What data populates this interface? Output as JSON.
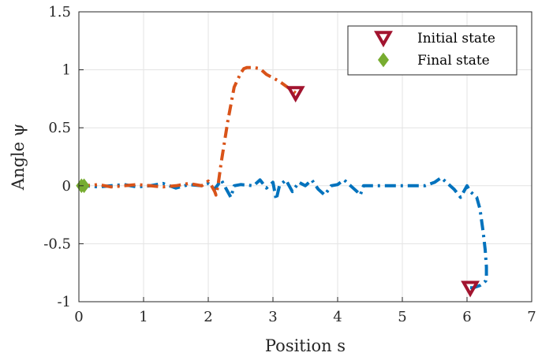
{
  "chart_data": {
    "type": "line",
    "xlabel": "Position s",
    "ylabel": "Angle ψ",
    "xlim": [
      0,
      7
    ],
    "ylim": [
      -1,
      1.5
    ],
    "xticks": [
      "0",
      "1",
      "2",
      "3",
      "4",
      "5",
      "6",
      "7"
    ],
    "yticks": [
      "-1",
      "-0.5",
      "0",
      "0.5",
      "1",
      "1.5"
    ],
    "grid": true,
    "legend_position": "top-right",
    "legend": [
      {
        "label": "Initial state",
        "marker": "triangle-down",
        "color": "#A2142F"
      },
      {
        "label": "Final state",
        "marker": "diamond",
        "color": "#77AC30"
      }
    ],
    "series": [
      {
        "color": "#0072BD",
        "line_style": "dash-dot",
        "x": [
          0.0,
          0.1,
          0.3,
          0.5,
          0.7,
          0.9,
          1.1,
          1.3,
          1.5,
          1.7,
          1.9,
          2.0,
          2.1,
          2.2,
          2.3,
          2.35,
          2.4,
          2.5,
          2.7,
          2.8,
          2.9,
          3.0,
          3.05,
          3.1,
          3.2,
          3.3,
          3.4,
          3.5,
          3.6,
          3.7,
          3.8,
          3.9,
          4.0,
          4.1,
          4.2,
          4.3,
          4.35,
          4.4,
          4.5,
          4.8,
          5.0,
          5.2,
          5.35,
          5.5,
          5.6,
          5.7,
          5.8,
          5.9,
          6.0,
          6.05,
          6.15,
          6.2,
          6.25,
          6.28,
          6.3,
          6.3,
          6.29,
          6.25,
          6.2,
          6.1,
          6.0
        ],
        "y": [
          0.0,
          0.0,
          -0.01,
          0.0,
          0.01,
          -0.01,
          0.0,
          0.02,
          -0.02,
          0.01,
          0.0,
          0.02,
          -0.03,
          0.05,
          -0.05,
          -0.1,
          0.0,
          0.01,
          0.0,
          0.05,
          -0.02,
          0.03,
          -0.12,
          0.0,
          0.05,
          -0.05,
          0.03,
          0.0,
          0.05,
          -0.03,
          -0.08,
          0.0,
          0.01,
          0.05,
          0.0,
          -0.05,
          -0.08,
          0.0,
          0.0,
          0.0,
          0.0,
          0.0,
          0.0,
          0.03,
          0.07,
          0.02,
          -0.03,
          -0.1,
          0.0,
          -0.05,
          -0.1,
          -0.2,
          -0.4,
          -0.55,
          -0.7,
          -0.8,
          -0.82,
          -0.84,
          -0.86,
          -0.88,
          -0.88
        ]
      },
      {
        "color": "#D95319",
        "line_style": "dash-dot",
        "x": [
          0.0,
          0.1,
          0.3,
          0.5,
          0.7,
          0.9,
          1.1,
          1.3,
          1.5,
          1.7,
          1.9,
          2.0,
          2.05,
          2.1,
          2.12,
          2.15,
          2.2,
          2.3,
          2.4,
          2.5,
          2.55,
          2.6,
          2.7,
          2.8,
          2.9,
          3.0,
          3.1,
          3.2,
          3.3,
          3.35
        ],
        "y": [
          0.0,
          0.0,
          0.01,
          -0.01,
          0.0,
          0.01,
          0.0,
          -0.01,
          0.0,
          0.02,
          0.0,
          0.04,
          0.0,
          -0.05,
          -0.08,
          0.0,
          0.2,
          0.55,
          0.85,
          0.97,
          1.01,
          1.02,
          1.02,
          1.01,
          0.96,
          0.93,
          0.9,
          0.86,
          0.82,
          0.8
        ]
      }
    ],
    "markers": [
      {
        "type": "initial",
        "x": 3.35,
        "y": 0.8
      },
      {
        "type": "initial",
        "x": 6.05,
        "y": -0.88
      },
      {
        "type": "final",
        "x": 0.08,
        "y": 0.0
      },
      {
        "type": "final",
        "x": 0.04,
        "y": 0.0
      }
    ]
  }
}
